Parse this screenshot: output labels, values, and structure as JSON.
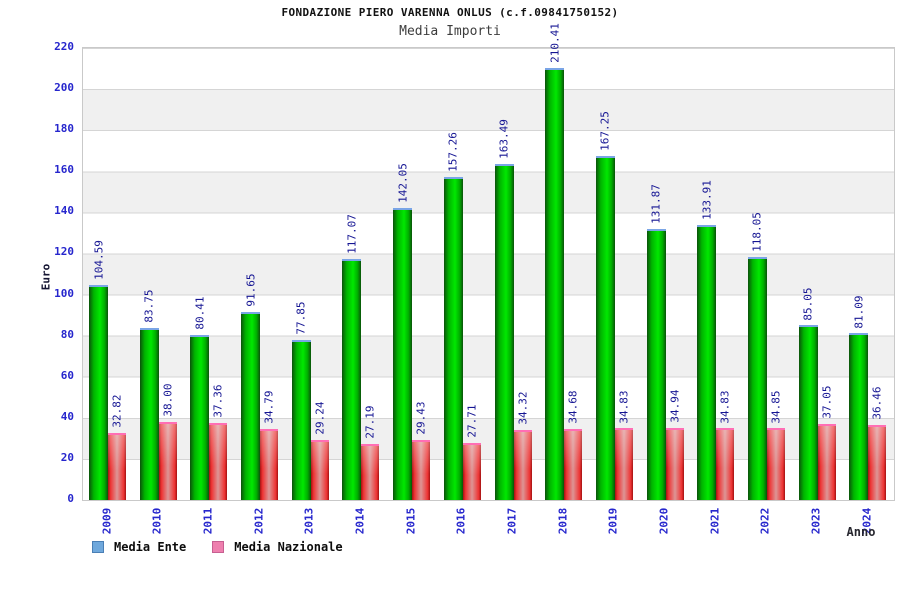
{
  "header": {
    "title": "FONDAZIONE PIERO VARENNA ONLUS (c.f.09841750152)",
    "subtitle": "Media Importi"
  },
  "axes": {
    "y_title": "Euro",
    "x_title": "Anno",
    "y_ticks": [
      "0",
      "20",
      "40",
      "60",
      "80",
      "100",
      "120",
      "140",
      "160",
      "180",
      "200",
      "220"
    ]
  },
  "legend": {
    "items": [
      {
        "label": "Media Ente",
        "swatch_fill": "#6fa8dc",
        "swatch_border": "#4a7fb5"
      },
      {
        "label": "Media Nazionale",
        "swatch_fill": "#ee7fae",
        "swatch_border": "#c75f91"
      }
    ]
  },
  "chart_data": {
    "type": "bar",
    "title": "FONDAZIONE PIERO VARENNA ONLUS (c.f.09841750152)",
    "subtitle": "Media Importi",
    "xlabel": "Anno",
    "ylabel": "Euro",
    "ylim": [
      0,
      220
    ],
    "ytick_step": 20,
    "grid": true,
    "plot_bands": [
      "#ffffff",
      "#f0f0f0"
    ],
    "legend_position": "bottom",
    "categories": [
      "2009",
      "2010",
      "2011",
      "2012",
      "2013",
      "2014",
      "2015",
      "2016",
      "2017",
      "2018",
      "2019",
      "2020",
      "2021",
      "2022",
      "2023",
      "2024"
    ],
    "series": [
      {
        "name": "Media Ente",
        "bar_color": "#00c800",
        "cap_color": "#7aa5e6",
        "values": [
          "104.59",
          "83.75",
          "80.41",
          "91.65",
          "77.85",
          "117.07",
          "142.05",
          "157.26",
          "163.49",
          "210.41",
          "167.25",
          "131.87",
          "133.91",
          "118.05",
          "85.05",
          "81.09"
        ]
      },
      {
        "name": "Media Nazionale",
        "bar_color": "#e03333",
        "cap_color": "#ff6eb4",
        "values": [
          "32.82",
          "38.00",
          "37.36",
          "34.79",
          "29.24",
          "27.19",
          "29.43",
          "27.71",
          "34.32",
          "34.68",
          "34.83",
          "34.94",
          "34.83",
          "34.85",
          "37.05",
          "36.46"
        ]
      }
    ],
    "value_label_color": "#151593",
    "tick_label_color": "#2626cd"
  }
}
